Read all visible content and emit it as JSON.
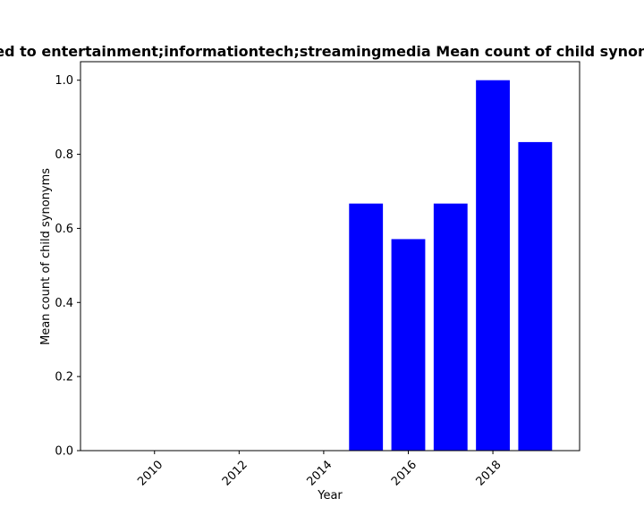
{
  "chart_data": {
    "type": "bar",
    "title": "Added to entertainment;informationtech;streamingmedia Mean count of child synonyms",
    "xlabel": "Year",
    "ylabel": "Mean count of child synonyms",
    "x": [
      2015,
      2016,
      2017,
      2018,
      2019
    ],
    "values": [
      0.667,
      0.571,
      0.667,
      1.0,
      0.833
    ],
    "xlim": [
      2008.25,
      2020.05
    ],
    "ylim": [
      0,
      1.05
    ],
    "x_ticks": [
      2010,
      2012,
      2014,
      2016,
      2018
    ],
    "y_ticks": [
      0.0,
      0.2,
      0.4,
      0.6,
      0.8,
      1.0
    ],
    "y_tick_labels": [
      "0.0",
      "0.2",
      "0.4",
      "0.6",
      "0.8",
      "1.0"
    ],
    "bar_color": "#0000ff",
    "grid": false,
    "legend": "none"
  }
}
